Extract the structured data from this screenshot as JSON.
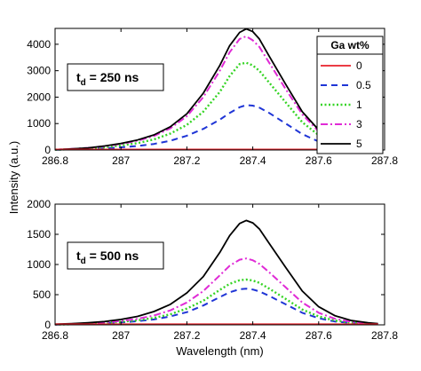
{
  "colors": {
    "s0": "#e8202a",
    "s05": "#1f35d6",
    "s1": "#35d424",
    "s3": "#e02bd6",
    "s5": "#000000"
  },
  "chart_data": [
    {
      "type": "line",
      "xlabel": "",
      "ylabel": "",
      "xlim": [
        286.8,
        287.8
      ],
      "ylim": [
        0,
        4600
      ],
      "xticks": [
        "286.8",
        "287",
        "287.2",
        "287.4",
        "287.6",
        "287.8"
      ],
      "yticks": [
        "0",
        "1000",
        "2000",
        "3000",
        "4000"
      ],
      "annotation": {
        "t": "t",
        "sub": "d",
        "rest": " = 250 ns"
      },
      "legend": {
        "title": "Ga wt%",
        "entries": [
          "0",
          "0.5",
          "1",
          "3",
          "5"
        ],
        "placement": "top-right"
      },
      "x": [
        286.8,
        286.85,
        286.9,
        286.95,
        287.0,
        287.05,
        287.1,
        287.15,
        287.2,
        287.25,
        287.3,
        287.33,
        287.36,
        287.38,
        287.4,
        287.42,
        287.45,
        287.5,
        287.55,
        287.6,
        287.65,
        287.7,
        287.75,
        287.78
      ],
      "series": [
        {
          "name": "0",
          "color": "s0",
          "dash": "solid",
          "values": [
            20,
            20,
            20,
            20,
            20,
            20,
            20,
            20,
            20,
            20,
            20,
            20,
            20,
            20,
            20,
            20,
            20,
            20,
            20,
            20,
            20,
            20,
            20,
            20
          ]
        },
        {
          "name": "0.5",
          "color": "s05",
          "dash": "dashed",
          "values": [
            10,
            20,
            35,
            60,
            100,
            150,
            230,
            350,
            540,
            800,
            1150,
            1400,
            1620,
            1700,
            1680,
            1600,
            1400,
            1000,
            600,
            320,
            160,
            90,
            50,
            30
          ]
        },
        {
          "name": "1",
          "color": "s1",
          "dash": "dotted",
          "values": [
            10,
            30,
            60,
            100,
            170,
            260,
            400,
            620,
            950,
            1450,
            2200,
            2800,
            3250,
            3300,
            3200,
            3000,
            2550,
            1800,
            1050,
            560,
            280,
            140,
            70,
            40
          ]
        },
        {
          "name": "3",
          "color": "s3",
          "dash": "dashdot",
          "values": [
            15,
            40,
            80,
            140,
            230,
            350,
            530,
            820,
            1280,
            2000,
            3000,
            3700,
            4200,
            4300,
            4150,
            3900,
            3300,
            2300,
            1350,
            700,
            340,
            160,
            80,
            40
          ]
        },
        {
          "name": "5",
          "color": "s5",
          "dash": "solid",
          "values": [
            15,
            40,
            80,
            150,
            250,
            380,
            570,
            880,
            1370,
            2150,
            3200,
            3950,
            4450,
            4580,
            4480,
            4200,
            3550,
            2480,
            1450,
            760,
            370,
            170,
            80,
            40
          ]
        }
      ]
    },
    {
      "type": "line",
      "xlabel": "Wavelength (nm)",
      "ylabel": "Intensity (a.u.)",
      "xlim": [
        286.8,
        287.8
      ],
      "ylim": [
        0,
        2000
      ],
      "xticks": [
        "286.8",
        "287",
        "287.2",
        "287.4",
        "287.6",
        "287.8"
      ],
      "yticks": [
        "0",
        "500",
        "1000",
        "1500",
        "2000"
      ],
      "annotation": {
        "t": "t",
        "sub": "d",
        "rest": " = 500 ns"
      },
      "x": [
        286.8,
        286.85,
        286.9,
        286.95,
        287.0,
        287.05,
        287.1,
        287.15,
        287.2,
        287.25,
        287.3,
        287.33,
        287.36,
        287.38,
        287.4,
        287.42,
        287.45,
        287.5,
        287.55,
        287.6,
        287.65,
        287.7,
        287.75,
        287.78
      ],
      "series": [
        {
          "name": "0",
          "color": "s0",
          "dash": "solid",
          "values": [
            10,
            10,
            10,
            10,
            10,
            10,
            10,
            10,
            10,
            10,
            10,
            10,
            10,
            10,
            10,
            10,
            10,
            10,
            10,
            10,
            10,
            10,
            10,
            10
          ]
        },
        {
          "name": "0.5",
          "color": "s05",
          "dash": "dashed",
          "values": [
            5,
            10,
            15,
            25,
            40,
            60,
            90,
            140,
            210,
            320,
            460,
            540,
            590,
            600,
            585,
            555,
            480,
            340,
            200,
            110,
            55,
            30,
            15,
            10
          ]
        },
        {
          "name": "1",
          "color": "s1",
          "dash": "dotted",
          "values": [
            5,
            10,
            20,
            30,
            50,
            75,
            115,
            175,
            270,
            400,
            580,
            680,
            740,
            750,
            735,
            695,
            600,
            430,
            255,
            140,
            70,
            35,
            20,
            10
          ]
        },
        {
          "name": "3",
          "color": "s3",
          "dash": "dashdot",
          "values": [
            5,
            15,
            25,
            40,
            65,
            100,
            155,
            240,
            370,
            560,
            820,
            980,
            1080,
            1100,
            1070,
            1010,
            870,
            620,
            370,
            200,
            100,
            50,
            25,
            15
          ]
        },
        {
          "name": "5",
          "color": "s5",
          "dash": "solid",
          "values": [
            10,
            20,
            35,
            55,
            90,
            140,
            220,
            340,
            530,
            800,
            1200,
            1480,
            1680,
            1730,
            1690,
            1590,
            1350,
            950,
            560,
            300,
            150,
            70,
            35,
            20
          ]
        }
      ]
    }
  ]
}
